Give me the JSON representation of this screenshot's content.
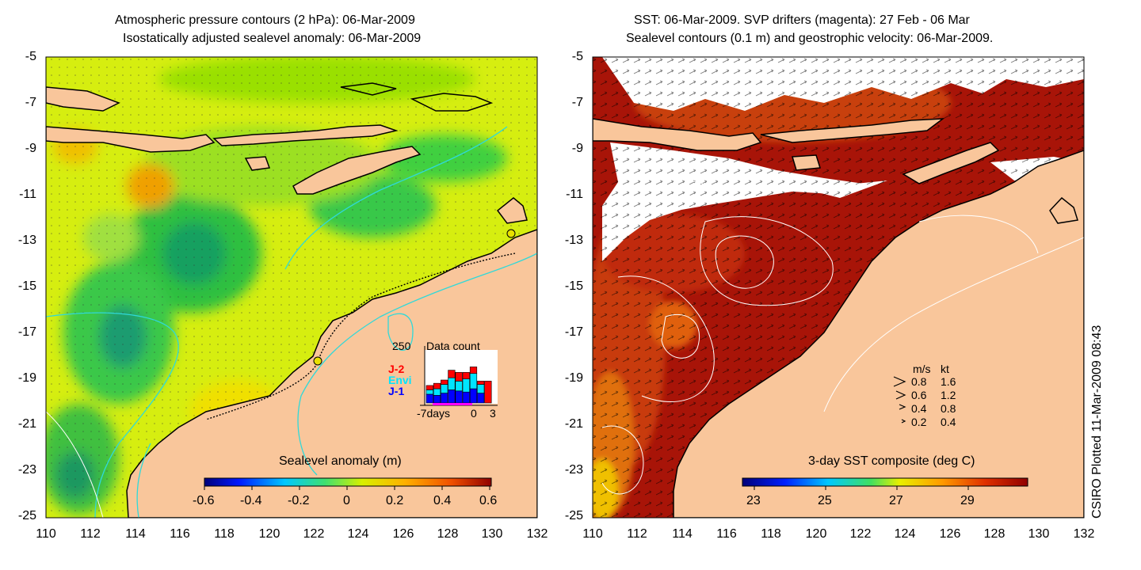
{
  "left_panel": {
    "title_line1": "Atmospheric pressure contours (2 hPa): 06-Mar-2009",
    "title_line2": "Isostatically adjusted sealevel anomaly: 06-Mar-2009",
    "colorbar_title": "Sealevel anomaly (m)",
    "colorbar_ticks": [
      "-0.6",
      "-0.4",
      "-0.2",
      "0",
      "0.2",
      "0.4",
      "0.6"
    ],
    "inset": {
      "title": "Data count",
      "ymax_label": "250",
      "xlabel_left": "-7days",
      "xlabel_mid": "0",
      "xlabel_right": "3",
      "legend": [
        {
          "name": "J-2",
          "color": "#ff0000"
        },
        {
          "name": "Envi",
          "color": "#00e5ff"
        },
        {
          "name": "J-1",
          "color": "#0000ff"
        }
      ],
      "bars": [
        {
          "j1": 40,
          "envi": 20,
          "j2": 20
        },
        {
          "j1": 35,
          "envi": 30,
          "j2": 25
        },
        {
          "j1": 45,
          "envi": 40,
          "j2": 20
        },
        {
          "j1": 60,
          "envi": 55,
          "j2": 35
        },
        {
          "j1": 55,
          "envi": 45,
          "j2": 40
        },
        {
          "j1": 50,
          "envi": 60,
          "j2": 30
        },
        {
          "j1": 65,
          "envi": 70,
          "j2": 30
        },
        {
          "j1": 45,
          "envi": 40,
          "j2": 15
        },
        {
          "j1": 0,
          "envi": 0,
          "j2": 100
        }
      ],
      "ymax": 250
    }
  },
  "right_panel": {
    "title_line1": "SST: 06-Mar-2009. SVP drifters (magenta): 27 Feb - 06 Mar",
    "title_line2": "Sealevel contours (0.1 m) and geostrophic velocity: 06-Mar-2009.",
    "colorbar_title": "3-day SST composite (deg C)",
    "colorbar_ticks": [
      "23",
      "25",
      "27",
      "29"
    ],
    "velocity_key": {
      "header_ms": "m/s",
      "header_kt": "kt",
      "rows": [
        {
          "ms": "0.8",
          "kt": "1.6"
        },
        {
          "ms": "0.6",
          "kt": "1.2"
        },
        {
          "ms": "0.4",
          "kt": "0.8"
        },
        {
          "ms": "0.2",
          "kt": "0.4"
        }
      ]
    }
  },
  "axes": {
    "lon_ticks": [
      "110",
      "112",
      "114",
      "116",
      "118",
      "120",
      "122",
      "124",
      "126",
      "128",
      "130",
      "132"
    ],
    "lat_ticks": [
      "-5",
      "-7",
      "-9",
      "-11",
      "-13",
      "-15",
      "-17",
      "-19",
      "-21",
      "-23",
      "-25"
    ]
  },
  "credit": "CSIRO Plotted 11-Mar-2009 08:43",
  "colors": {
    "land": "#f9c69b",
    "sst_warm": "#a81408",
    "sla_yellow": "#e8f000",
    "sla_green": "#4fd84a",
    "contour_cyan": "#2fd9d9"
  }
}
